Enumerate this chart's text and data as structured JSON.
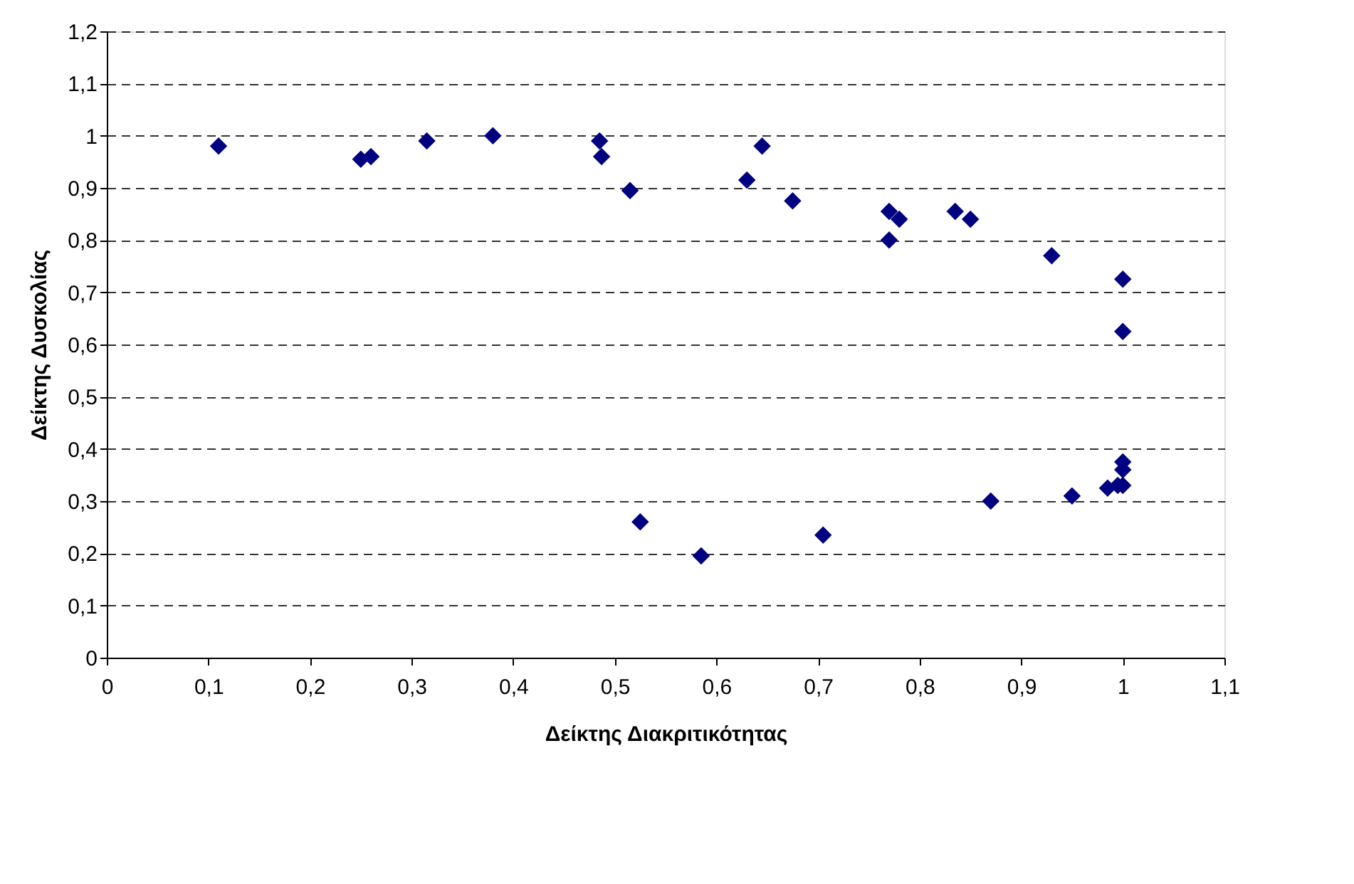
{
  "chart_data": {
    "type": "scatter",
    "xlabel": "Δείκτης Διακριτικότητας",
    "ylabel": "Δείκτης Δυσκολίας",
    "xlim": [
      0,
      1.1
    ],
    "ylim": [
      0,
      1.2
    ],
    "xticks": [
      0,
      {
        "value": 0.1,
        "label": "0,1"
      },
      {
        "value": 0.2,
        "label": "0,2"
      },
      {
        "value": 0.3,
        "label": "0,3"
      },
      {
        "value": 0.4,
        "label": "0,4"
      },
      {
        "value": 0.5,
        "label": "0,5"
      },
      {
        "value": 0.6,
        "label": "0,6"
      },
      {
        "value": 0.7,
        "label": "0,7"
      },
      {
        "value": 0.8,
        "label": "0,8"
      },
      {
        "value": 0.9,
        "label": "0,9"
      },
      1,
      {
        "value": 1.1,
        "label": "1,1"
      }
    ],
    "yticks": [
      0,
      {
        "value": 0.1,
        "label": "0,1"
      },
      {
        "value": 0.2,
        "label": "0,2"
      },
      {
        "value": 0.3,
        "label": "0,3"
      },
      {
        "value": 0.4,
        "label": "0,4"
      },
      {
        "value": 0.5,
        "label": "0,5"
      },
      {
        "value": 0.6,
        "label": "0,6"
      },
      {
        "value": 0.7,
        "label": "0,7"
      },
      {
        "value": 0.8,
        "label": "0,8"
      },
      {
        "value": 0.9,
        "label": "0,9"
      },
      1,
      {
        "value": 1.1,
        "label": "1,1"
      },
      {
        "value": 1.2,
        "label": "1,2"
      }
    ],
    "grid": "y",
    "marker": "diamond",
    "series": [
      {
        "color": "#000080",
        "x": [
          0.11,
          0.25,
          0.26,
          0.315,
          0.38,
          0.485,
          0.487,
          0.515,
          0.63,
          0.645,
          0.675,
          0.77,
          0.78,
          0.77,
          0.835,
          0.85,
          0.93,
          1.0,
          1.0,
          0.525,
          0.585,
          0.705,
          0.87,
          0.95,
          0.985,
          0.995,
          1.0,
          1.0,
          1.0
        ],
        "values": [
          0.98,
          0.955,
          0.96,
          0.99,
          1.0,
          0.99,
          0.96,
          0.895,
          0.915,
          0.98,
          0.875,
          0.855,
          0.84,
          0.8,
          0.855,
          0.84,
          0.77,
          0.725,
          0.625,
          0.26,
          0.195,
          0.235,
          0.3,
          0.31,
          0.325,
          0.33,
          0.375,
          0.36,
          0.33
        ]
      }
    ]
  }
}
